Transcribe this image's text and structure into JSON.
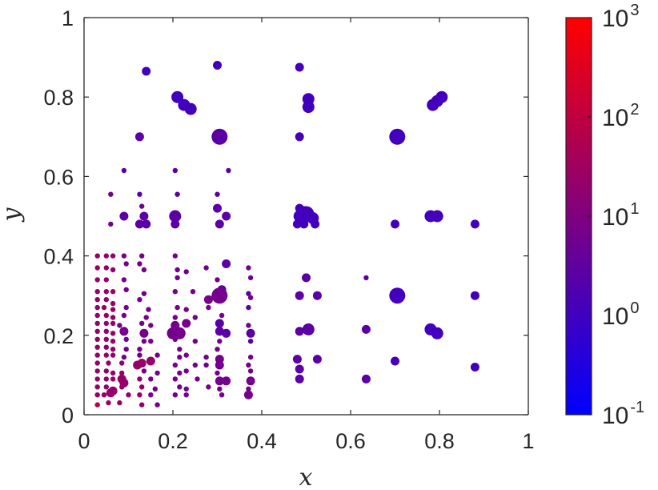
{
  "chart_data": {
    "type": "scatter",
    "title": "",
    "xlabel": "x",
    "ylabel": "y",
    "xlim": [
      0,
      1
    ],
    "ylim": [
      0,
      1
    ],
    "xticks": [
      "0",
      "0.2",
      "0.4",
      "0.6",
      "0.8",
      "1"
    ],
    "yticks": [
      "0",
      "0.2",
      "0.4",
      "0.6",
      "0.8",
      "1"
    ],
    "grid": false,
    "colorbar": {
      "scale": "log",
      "range": [
        0.1,
        1000
      ],
      "colormap": [
        "#0000ff",
        "#ff0000"
      ],
      "ticks": [
        {
          "base": "10",
          "exp": "3",
          "value": 1000
        },
        {
          "base": "10",
          "exp": "2",
          "value": 100
        },
        {
          "base": "10",
          "exp": "1",
          "value": 10
        },
        {
          "base": "10",
          "exp": "0",
          "value": 1
        },
        {
          "base": "10",
          "exp": "-1",
          "value": 0.1
        }
      ]
    },
    "point_fields": [
      "x",
      "y",
      "marker_size",
      "color_value"
    ],
    "points": [
      [
        0.14,
        0.865,
        1,
        2
      ],
      [
        0.3,
        0.88,
        1,
        2
      ],
      [
        0.485,
        0.875,
        1,
        2
      ],
      [
        0.21,
        0.8,
        2,
        2
      ],
      [
        0.225,
        0.78,
        2,
        2
      ],
      [
        0.24,
        0.77,
        2,
        2
      ],
      [
        0.505,
        0.795,
        2,
        2
      ],
      [
        0.505,
        0.775,
        2,
        2
      ],
      [
        0.785,
        0.78,
        2,
        2
      ],
      [
        0.795,
        0.79,
        2,
        2
      ],
      [
        0.805,
        0.8,
        2,
        2
      ],
      [
        0.125,
        0.7,
        1,
        3
      ],
      [
        0.305,
        0.7,
        3,
        3
      ],
      [
        0.485,
        0.7,
        1,
        2
      ],
      [
        0.705,
        0.7,
        3,
        2
      ],
      [
        0.09,
        0.615,
        0,
        3
      ],
      [
        0.205,
        0.615,
        0,
        3
      ],
      [
        0.325,
        0.615,
        0,
        3
      ],
      [
        0.06,
        0.555,
        0,
        4
      ],
      [
        0.125,
        0.555,
        0,
        3
      ],
      [
        0.21,
        0.555,
        0,
        3
      ],
      [
        0.3,
        0.555,
        0,
        3
      ],
      [
        0.13,
        0.525,
        0,
        4
      ],
      [
        0.3,
        0.52,
        1,
        3
      ],
      [
        0.485,
        0.52,
        1,
        2
      ],
      [
        0.495,
        0.51,
        2,
        2
      ],
      [
        0.09,
        0.5,
        1,
        3
      ],
      [
        0.135,
        0.5,
        1,
        3
      ],
      [
        0.205,
        0.5,
        2,
        3
      ],
      [
        0.32,
        0.5,
        1,
        3
      ],
      [
        0.485,
        0.5,
        2,
        2
      ],
      [
        0.5,
        0.505,
        3,
        2
      ],
      [
        0.515,
        0.495,
        2,
        2
      ],
      [
        0.78,
        0.5,
        2,
        2
      ],
      [
        0.795,
        0.5,
        2,
        2
      ],
      [
        0.06,
        0.48,
        0,
        4
      ],
      [
        0.125,
        0.48,
        1,
        3
      ],
      [
        0.14,
        0.48,
        1,
        3
      ],
      [
        0.205,
        0.48,
        1,
        3
      ],
      [
        0.305,
        0.48,
        1,
        3
      ],
      [
        0.48,
        0.48,
        1,
        2
      ],
      [
        0.495,
        0.48,
        1,
        2
      ],
      [
        0.52,
        0.48,
        1,
        2
      ],
      [
        0.7,
        0.48,
        1,
        2
      ],
      [
        0.88,
        0.48,
        1,
        2
      ],
      [
        0.03,
        0.4,
        0,
        5
      ],
      [
        0.05,
        0.4,
        0,
        5
      ],
      [
        0.065,
        0.4,
        0,
        5
      ],
      [
        0.09,
        0.4,
        0,
        4
      ],
      [
        0.13,
        0.4,
        0,
        4
      ],
      [
        0.205,
        0.4,
        0,
        4
      ],
      [
        0.095,
        0.38,
        0,
        4
      ],
      [
        0.125,
        0.38,
        0,
        4
      ],
      [
        0.32,
        0.38,
        1,
        3
      ],
      [
        0.03,
        0.37,
        0,
        5
      ],
      [
        0.05,
        0.37,
        0,
        5
      ],
      [
        0.065,
        0.365,
        0,
        5
      ],
      [
        0.135,
        0.365,
        0,
        4
      ],
      [
        0.21,
        0.365,
        0,
        4
      ],
      [
        0.23,
        0.36,
        0,
        4
      ],
      [
        0.275,
        0.37,
        0,
        4
      ],
      [
        0.37,
        0.37,
        0,
        4
      ],
      [
        0.03,
        0.34,
        0,
        5
      ],
      [
        0.05,
        0.34,
        0,
        5
      ],
      [
        0.09,
        0.34,
        0,
        4
      ],
      [
        0.21,
        0.345,
        0,
        4
      ],
      [
        0.3,
        0.34,
        0,
        4
      ],
      [
        0.375,
        0.345,
        0,
        4
      ],
      [
        0.5,
        0.345,
        1,
        3
      ],
      [
        0.635,
        0.345,
        0,
        3
      ],
      [
        0.03,
        0.31,
        0,
        5
      ],
      [
        0.05,
        0.31,
        0,
        5
      ],
      [
        0.065,
        0.31,
        0,
        5
      ],
      [
        0.095,
        0.315,
        0,
        4
      ],
      [
        0.135,
        0.305,
        0,
        4
      ],
      [
        0.205,
        0.31,
        0,
        4
      ],
      [
        0.245,
        0.31,
        0,
        4
      ],
      [
        0.31,
        0.315,
        1,
        3
      ],
      [
        0.37,
        0.305,
        0,
        3
      ],
      [
        0.03,
        0.29,
        0,
        5
      ],
      [
        0.05,
        0.29,
        0,
        5
      ],
      [
        0.065,
        0.28,
        0,
        5
      ],
      [
        0.125,
        0.29,
        0,
        4
      ],
      [
        0.28,
        0.29,
        1,
        4
      ],
      [
        0.305,
        0.3,
        3,
        4
      ],
      [
        0.375,
        0.295,
        0,
        4
      ],
      [
        0.485,
        0.3,
        1,
        3
      ],
      [
        0.525,
        0.3,
        1,
        3
      ],
      [
        0.705,
        0.3,
        3,
        2
      ],
      [
        0.88,
        0.3,
        1,
        2
      ],
      [
        0.03,
        0.27,
        0,
        5
      ],
      [
        0.045,
        0.27,
        0,
        5
      ],
      [
        0.065,
        0.265,
        0,
        5
      ],
      [
        0.095,
        0.27,
        0,
        4
      ],
      [
        0.145,
        0.265,
        0,
        4
      ],
      [
        0.21,
        0.27,
        0,
        4
      ],
      [
        0.23,
        0.265,
        0,
        4
      ],
      [
        0.28,
        0.27,
        0,
        4
      ],
      [
        0.37,
        0.27,
        0,
        3
      ],
      [
        0.03,
        0.25,
        0,
        5
      ],
      [
        0.05,
        0.25,
        0,
        5
      ],
      [
        0.065,
        0.245,
        0,
        5
      ],
      [
        0.09,
        0.25,
        0,
        4
      ],
      [
        0.14,
        0.245,
        0,
        4
      ],
      [
        0.205,
        0.245,
        0,
        4
      ],
      [
        0.25,
        0.245,
        0,
        4
      ],
      [
        0.31,
        0.25,
        0,
        4
      ],
      [
        0.03,
        0.23,
        0,
        5
      ],
      [
        0.05,
        0.23,
        0,
        5
      ],
      [
        0.065,
        0.23,
        0,
        5
      ],
      [
        0.08,
        0.225,
        0,
        4
      ],
      [
        0.13,
        0.23,
        0,
        4
      ],
      [
        0.15,
        0.225,
        0,
        4
      ],
      [
        0.205,
        0.225,
        1,
        4
      ],
      [
        0.23,
        0.23,
        1,
        4
      ],
      [
        0.305,
        0.23,
        1,
        3
      ],
      [
        0.37,
        0.225,
        0,
        4
      ],
      [
        0.03,
        0.21,
        0,
        5
      ],
      [
        0.05,
        0.21,
        0,
        5
      ],
      [
        0.065,
        0.205,
        0,
        5
      ],
      [
        0.09,
        0.21,
        1,
        4
      ],
      [
        0.135,
        0.205,
        1,
        4
      ],
      [
        0.2,
        0.205,
        2,
        4
      ],
      [
        0.215,
        0.205,
        2,
        4
      ],
      [
        0.305,
        0.21,
        1,
        3
      ],
      [
        0.32,
        0.205,
        1,
        3
      ],
      [
        0.375,
        0.205,
        1,
        3
      ],
      [
        0.485,
        0.21,
        1,
        3
      ],
      [
        0.505,
        0.215,
        2,
        3
      ],
      [
        0.635,
        0.215,
        1,
        3
      ],
      [
        0.78,
        0.215,
        2,
        2
      ],
      [
        0.795,
        0.205,
        2,
        2
      ],
      [
        0.03,
        0.19,
        0,
        5
      ],
      [
        0.05,
        0.19,
        0,
        5
      ],
      [
        0.065,
        0.185,
        0,
        5
      ],
      [
        0.095,
        0.19,
        0,
        4
      ],
      [
        0.135,
        0.185,
        0,
        4
      ],
      [
        0.15,
        0.185,
        0,
        4
      ],
      [
        0.205,
        0.19,
        0,
        4
      ],
      [
        0.25,
        0.185,
        0,
        4
      ],
      [
        0.305,
        0.185,
        0,
        4
      ],
      [
        0.375,
        0.185,
        0,
        3
      ],
      [
        0.03,
        0.17,
        0,
        5
      ],
      [
        0.05,
        0.17,
        0,
        5
      ],
      [
        0.065,
        0.165,
        0,
        5
      ],
      [
        0.095,
        0.165,
        0,
        4
      ],
      [
        0.125,
        0.165,
        0,
        4
      ],
      [
        0.215,
        0.165,
        0,
        4
      ],
      [
        0.3,
        0.165,
        0,
        4
      ],
      [
        0.03,
        0.15,
        0,
        5
      ],
      [
        0.05,
        0.15,
        0,
        5
      ],
      [
        0.065,
        0.15,
        0,
        5
      ],
      [
        0.09,
        0.145,
        0,
        4
      ],
      [
        0.125,
        0.15,
        0,
        4
      ],
      [
        0.165,
        0.15,
        0,
        4
      ],
      [
        0.215,
        0.145,
        0,
        4
      ],
      [
        0.23,
        0.15,
        0,
        4
      ],
      [
        0.275,
        0.145,
        0,
        4
      ],
      [
        0.305,
        0.14,
        1,
        4
      ],
      [
        0.375,
        0.145,
        0,
        4
      ],
      [
        0.48,
        0.14,
        1,
        3
      ],
      [
        0.525,
        0.14,
        1,
        3
      ],
      [
        0.7,
        0.135,
        1,
        2
      ],
      [
        0.03,
        0.13,
        0,
        5
      ],
      [
        0.055,
        0.13,
        0,
        5
      ],
      [
        0.085,
        0.13,
        0,
        5
      ],
      [
        0.12,
        0.125,
        1,
        5
      ],
      [
        0.13,
        0.13,
        1,
        5
      ],
      [
        0.15,
        0.135,
        1,
        5
      ],
      [
        0.205,
        0.125,
        0,
        4
      ],
      [
        0.25,
        0.125,
        0,
        4
      ],
      [
        0.275,
        0.125,
        0,
        4
      ],
      [
        0.305,
        0.125,
        1,
        4
      ],
      [
        0.37,
        0.125,
        0,
        4
      ],
      [
        0.485,
        0.115,
        1,
        3
      ],
      [
        0.88,
        0.12,
        1,
        2
      ],
      [
        0.03,
        0.11,
        0,
        5
      ],
      [
        0.05,
        0.11,
        0,
        5
      ],
      [
        0.065,
        0.105,
        0,
        5
      ],
      [
        0.085,
        0.105,
        0,
        5
      ],
      [
        0.135,
        0.11,
        0,
        4
      ],
      [
        0.165,
        0.105,
        0,
        4
      ],
      [
        0.215,
        0.105,
        0,
        4
      ],
      [
        0.23,
        0.11,
        0,
        4
      ],
      [
        0.3,
        0.105,
        0,
        4
      ],
      [
        0.375,
        0.11,
        0,
        4
      ],
      [
        0.03,
        0.09,
        0,
        5
      ],
      [
        0.05,
        0.09,
        0,
        5
      ],
      [
        0.065,
        0.09,
        0,
        5
      ],
      [
        0.085,
        0.09,
        1,
        5
      ],
      [
        0.09,
        0.08,
        1,
        5
      ],
      [
        0.125,
        0.09,
        0,
        5
      ],
      [
        0.15,
        0.09,
        0,
        4
      ],
      [
        0.205,
        0.09,
        0,
        4
      ],
      [
        0.255,
        0.09,
        0,
        4
      ],
      [
        0.305,
        0.085,
        1,
        4
      ],
      [
        0.32,
        0.085,
        1,
        4
      ],
      [
        0.375,
        0.085,
        1,
        4
      ],
      [
        0.485,
        0.09,
        1,
        3
      ],
      [
        0.635,
        0.09,
        1,
        3
      ],
      [
        0.03,
        0.07,
        0,
        5
      ],
      [
        0.05,
        0.07,
        0,
        5
      ],
      [
        0.085,
        0.07,
        0,
        5
      ],
      [
        0.13,
        0.07,
        0,
        5
      ],
      [
        0.16,
        0.065,
        0,
        4
      ],
      [
        0.215,
        0.07,
        0,
        4
      ],
      [
        0.23,
        0.065,
        0,
        4
      ],
      [
        0.28,
        0.07,
        0,
        4
      ],
      [
        0.305,
        0.065,
        0,
        4
      ],
      [
        0.37,
        0.065,
        0,
        4
      ],
      [
        0.03,
        0.05,
        0,
        5
      ],
      [
        0.045,
        0.05,
        0,
        5
      ],
      [
        0.06,
        0.055,
        1,
        5
      ],
      [
        0.065,
        0.06,
        1,
        5
      ],
      [
        0.1,
        0.05,
        0,
        5
      ],
      [
        0.125,
        0.05,
        0,
        5
      ],
      [
        0.15,
        0.05,
        0,
        4
      ],
      [
        0.205,
        0.05,
        0,
        4
      ],
      [
        0.23,
        0.05,
        0,
        4
      ],
      [
        0.31,
        0.05,
        0,
        4
      ],
      [
        0.37,
        0.05,
        1,
        4
      ],
      [
        0.03,
        0.025,
        0,
        6
      ],
      [
        0.055,
        0.03,
        0,
        5
      ],
      [
        0.08,
        0.03,
        0,
        5
      ],
      [
        0.13,
        0.025,
        0,
        5
      ],
      [
        0.165,
        0.025,
        0,
        4
      ]
    ]
  }
}
